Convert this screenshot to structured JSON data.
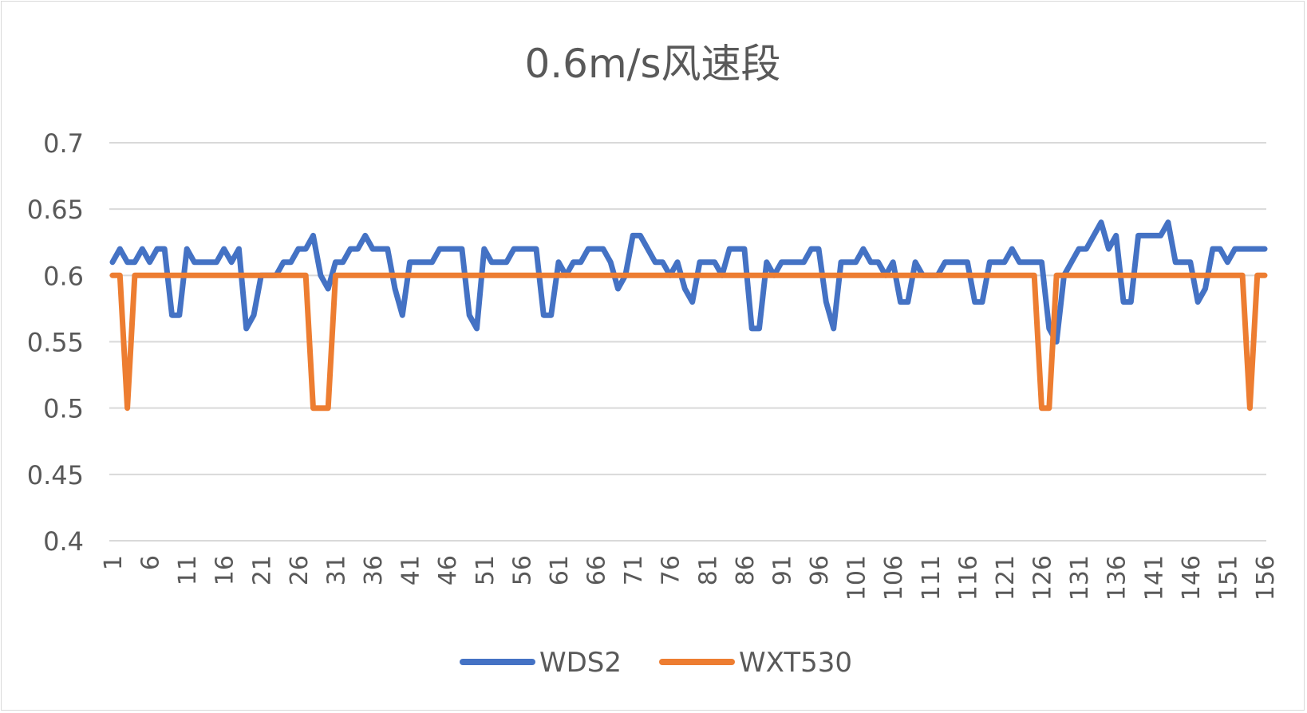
{
  "chart_data": {
    "type": "line",
    "title": "0.6m/s风速段",
    "xlabel": "",
    "ylabel": "",
    "ylim": [
      0.4,
      0.7
    ],
    "yticks": [
      "0.4",
      "0.45",
      "0.5",
      "0.55",
      "0.6",
      "0.65",
      "0.7"
    ],
    "x_start": 1,
    "x_end": 156,
    "xtick_step": 5,
    "grid": true,
    "legend": "bottom",
    "series": [
      {
        "name": "WDS2",
        "color": "#4472c4",
        "values": [
          0.61,
          0.62,
          0.61,
          0.61,
          0.62,
          0.61,
          0.62,
          0.62,
          0.57,
          0.57,
          0.62,
          0.61,
          0.61,
          0.61,
          0.61,
          0.62,
          0.61,
          0.62,
          0.56,
          0.57,
          0.6,
          0.6,
          0.6,
          0.61,
          0.61,
          0.62,
          0.62,
          0.63,
          0.6,
          0.59,
          0.61,
          0.61,
          0.62,
          0.62,
          0.63,
          0.62,
          0.62,
          0.62,
          0.59,
          0.57,
          0.61,
          0.61,
          0.61,
          0.61,
          0.62,
          0.62,
          0.62,
          0.62,
          0.57,
          0.56,
          0.62,
          0.61,
          0.61,
          0.61,
          0.62,
          0.62,
          0.62,
          0.62,
          0.57,
          0.57,
          0.61,
          0.6,
          0.61,
          0.61,
          0.62,
          0.62,
          0.62,
          0.61,
          0.59,
          0.6,
          0.63,
          0.63,
          0.62,
          0.61,
          0.61,
          0.6,
          0.61,
          0.59,
          0.58,
          0.61,
          0.61,
          0.61,
          0.6,
          0.62,
          0.62,
          0.62,
          0.56,
          0.56,
          0.61,
          0.6,
          0.61,
          0.61,
          0.61,
          0.61,
          0.62,
          0.62,
          0.58,
          0.56,
          0.61,
          0.61,
          0.61,
          0.62,
          0.61,
          0.61,
          0.6,
          0.61,
          0.58,
          0.58,
          0.61,
          0.6,
          0.6,
          0.6,
          0.61,
          0.61,
          0.61,
          0.61,
          0.58,
          0.58,
          0.61,
          0.61,
          0.61,
          0.62,
          0.61,
          0.61,
          0.61,
          0.61,
          0.56,
          0.55,
          0.6,
          0.61,
          0.62,
          0.62,
          0.63,
          0.64,
          0.62,
          0.63,
          0.58,
          0.58,
          0.63,
          0.63,
          0.63,
          0.63,
          0.64,
          0.61,
          0.61,
          0.61,
          0.58,
          0.59,
          0.62,
          0.62,
          0.61,
          0.62,
          0.62,
          0.62,
          0.62,
          0.62
        ]
      },
      {
        "name": "WXT530",
        "color": "#ed7d31",
        "values": [
          0.6,
          0.6,
          0.5,
          0.6,
          0.6,
          0.6,
          0.6,
          0.6,
          0.6,
          0.6,
          0.6,
          0.6,
          0.6,
          0.6,
          0.6,
          0.6,
          0.6,
          0.6,
          0.6,
          0.6,
          0.6,
          0.6,
          0.6,
          0.6,
          0.6,
          0.6,
          0.6,
          0.5,
          0.5,
          0.5,
          0.6,
          0.6,
          0.6,
          0.6,
          0.6,
          0.6,
          0.6,
          0.6,
          0.6,
          0.6,
          0.6,
          0.6,
          0.6,
          0.6,
          0.6,
          0.6,
          0.6,
          0.6,
          0.6,
          0.6,
          0.6,
          0.6,
          0.6,
          0.6,
          0.6,
          0.6,
          0.6,
          0.6,
          0.6,
          0.6,
          0.6,
          0.6,
          0.6,
          0.6,
          0.6,
          0.6,
          0.6,
          0.6,
          0.6,
          0.6,
          0.6,
          0.6,
          0.6,
          0.6,
          0.6,
          0.6,
          0.6,
          0.6,
          0.6,
          0.6,
          0.6,
          0.6,
          0.6,
          0.6,
          0.6,
          0.6,
          0.6,
          0.6,
          0.6,
          0.6,
          0.6,
          0.6,
          0.6,
          0.6,
          0.6,
          0.6,
          0.6,
          0.6,
          0.6,
          0.6,
          0.6,
          0.6,
          0.6,
          0.6,
          0.6,
          0.6,
          0.6,
          0.6,
          0.6,
          0.6,
          0.6,
          0.6,
          0.6,
          0.6,
          0.6,
          0.6,
          0.6,
          0.6,
          0.6,
          0.6,
          0.6,
          0.6,
          0.6,
          0.6,
          0.6,
          0.5,
          0.5,
          0.6,
          0.6,
          0.6,
          0.6,
          0.6,
          0.6,
          0.6,
          0.6,
          0.6,
          0.6,
          0.6,
          0.6,
          0.6,
          0.6,
          0.6,
          0.6,
          0.6,
          0.6,
          0.6,
          0.6,
          0.6,
          0.6,
          0.6,
          0.6,
          0.6,
          0.6,
          0.5,
          0.6,
          0.6
        ]
      }
    ]
  }
}
